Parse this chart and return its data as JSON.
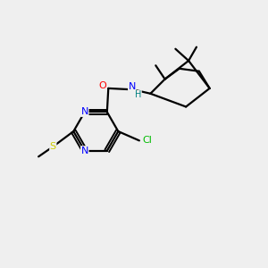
{
  "bg_color": "#efefef",
  "bond_color": "#000000",
  "atom_colors": {
    "N": "#0000ff",
    "O": "#ff0000",
    "S": "#cccc00",
    "Cl": "#00bb00",
    "H": "#008080",
    "C": "#000000"
  },
  "figsize": [
    3.0,
    3.0
  ],
  "dpi": 100,
  "xlim": [
    0,
    10
  ],
  "ylim": [
    0,
    10
  ]
}
